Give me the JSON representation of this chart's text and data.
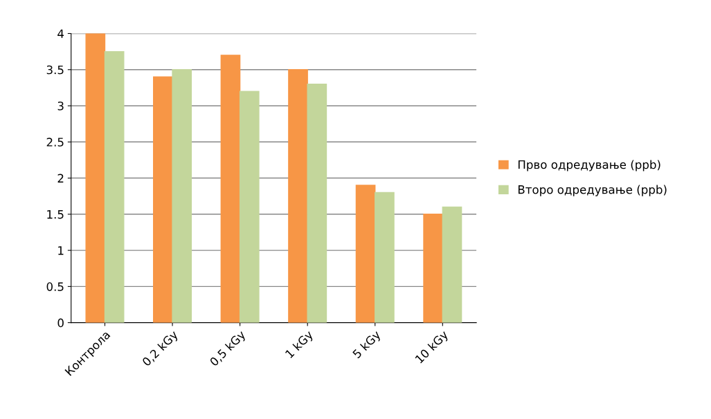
{
  "chart_data": {
    "type": "bar",
    "categories": [
      "Контрола",
      "0,2 kGy",
      "0,5 kGy",
      "1 kGy",
      "5 kGy",
      "10 kGy"
    ],
    "series": [
      {
        "name": "Прво одредување (ppb)",
        "color": "#f79646",
        "values": [
          4.0,
          3.4,
          3.7,
          3.5,
          1.9,
          1.5
        ]
      },
      {
        "name": "Второ одредување (ppb)",
        "color": "#c3d69b",
        "values": [
          3.75,
          3.5,
          3.2,
          3.3,
          1.8,
          1.6
        ]
      }
    ],
    "ylim": [
      0,
      4
    ],
    "yticks": [
      0,
      0.5,
      1,
      1.5,
      2,
      2.5,
      3,
      3.5,
      4
    ],
    "grid": "y",
    "legend": "right"
  }
}
